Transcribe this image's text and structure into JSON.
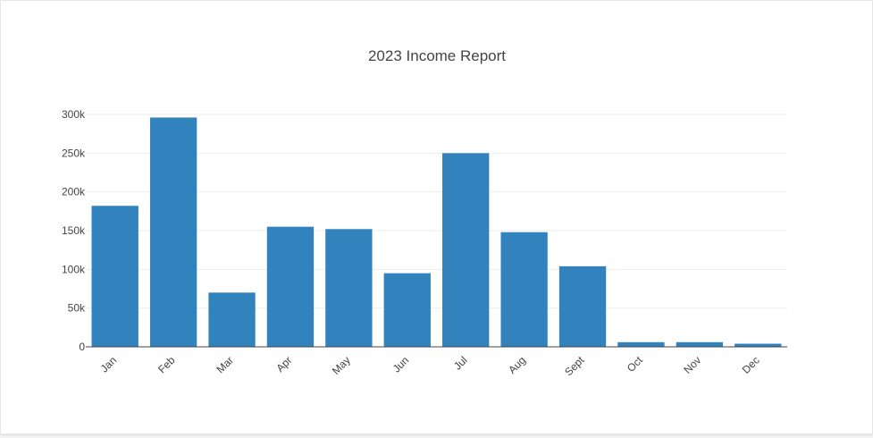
{
  "chart_data": {
    "type": "bar",
    "title": "2023 Income Report",
    "xlabel": "",
    "ylabel": "",
    "categories": [
      "Jan",
      "Feb",
      "Mar",
      "Apr",
      "May",
      "Jun",
      "Jul",
      "Aug",
      "Sept",
      "Oct",
      "Nov",
      "Dec"
    ],
    "values": [
      182000,
      296000,
      70000,
      155000,
      152000,
      95000,
      250000,
      148000,
      104000,
      6000,
      6000,
      4000
    ],
    "ylim": [
      0,
      300000
    ],
    "yticks": [
      0,
      50000,
      100000,
      150000,
      200000,
      250000,
      300000
    ],
    "ytick_labels": [
      "0",
      "50k",
      "100k",
      "150k",
      "200k",
      "250k",
      "300k"
    ],
    "grid": true,
    "bar_color": "#3182bd",
    "grid_color": "#eeeeee",
    "axis_color": "#444444"
  }
}
